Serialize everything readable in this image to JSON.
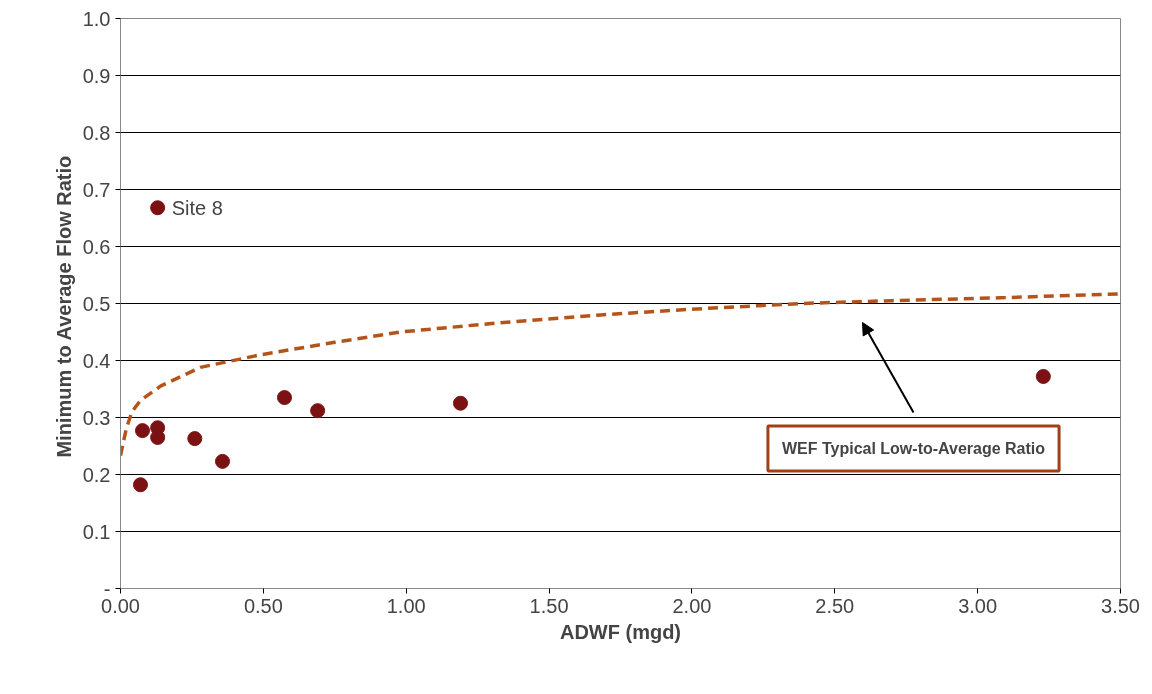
{
  "chart_data": {
    "type": "scatter",
    "xlabel": "ADWF (mgd)",
    "ylabel": "Minimum to Average  Flow Ratio",
    "xlim": [
      0,
      3.5
    ],
    "ylim": [
      0,
      1.0
    ],
    "xticks": [
      {
        "value": 0,
        "label": "0.00"
      },
      {
        "value": 0.5,
        "label": "0.50"
      },
      {
        "value": 1.0,
        "label": "1.00"
      },
      {
        "value": 1.5,
        "label": "1.50"
      },
      {
        "value": 2.0,
        "label": "2.00"
      },
      {
        "value": 2.5,
        "label": "2.50"
      },
      {
        "value": 3.0,
        "label": "3.00"
      },
      {
        "value": 3.5,
        "label": "3.50"
      }
    ],
    "yticks": [
      {
        "value": 0,
        "label": "-"
      },
      {
        "value": 0.1,
        "label": "0.1"
      },
      {
        "value": 0.2,
        "label": "0.2"
      },
      {
        "value": 0.3,
        "label": "0.3"
      },
      {
        "value": 0.4,
        "label": "0.4"
      },
      {
        "value": 0.5,
        "label": "0.5"
      },
      {
        "value": 0.6,
        "label": "0.6"
      },
      {
        "value": 0.7,
        "label": "0.7"
      },
      {
        "value": 0.8,
        "label": "0.8"
      },
      {
        "value": 0.9,
        "label": "0.9"
      },
      {
        "value": 1.0,
        "label": "1.0"
      }
    ],
    "grid": "y",
    "series": [
      {
        "color": "#7b1113",
        "marker": "circle",
        "x": [
          0.07,
          0.077,
          0.13,
          0.13,
          0.13,
          0.26,
          0.357,
          0.574,
          0.69,
          1.19,
          3.23
        ],
        "values": [
          0.182,
          0.277,
          0.668,
          0.282,
          0.265,
          0.263,
          0.223,
          0.335,
          0.312,
          0.325,
          0.372
        ]
      },
      {
        "type": "line",
        "color": "#b5541a",
        "line_style": "dashed",
        "x": [
          0,
          0.02,
          0.04,
          0.07,
          0.14,
          0.28,
          0.49,
          0.75,
          0.98,
          1.3,
          1.68,
          2.0,
          2.38,
          2.7,
          3.08,
          3.5
        ],
        "values": [
          0.233,
          0.28,
          0.31,
          0.33,
          0.355,
          0.388,
          0.41,
          0.432,
          0.45,
          0.465,
          0.48,
          0.49,
          0.5,
          0.505,
          0.51,
          0.517
        ]
      }
    ],
    "annotations": [
      {
        "text": "Site 8",
        "x": 0.13,
        "y": 0.668
      },
      "WEF Typical Low-to-Average Ratio"
    ]
  }
}
